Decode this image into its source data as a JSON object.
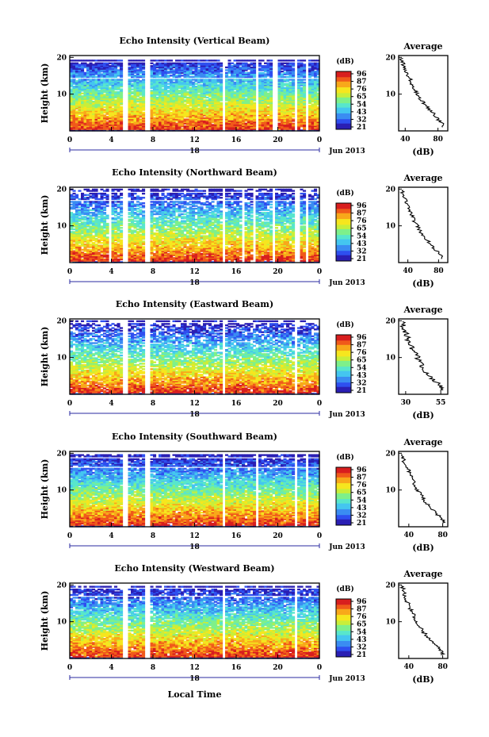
{
  "figure": {
    "xlabel": "Local Time",
    "x_ticks": [
      "0",
      "4",
      "8",
      "12",
      "16",
      "20",
      "0"
    ],
    "date_label": "18",
    "month_label": "Jun 2013",
    "ylabel": "Height (km)",
    "y_ticks": [
      "10",
      "20"
    ],
    "colorbar_unit": "(dB)",
    "profile_title": "Average",
    "profile_xlabel": "(dB)",
    "colormap": [
      "#2a1fb4",
      "#2e4ff0",
      "#3a8cf2",
      "#44c6f0",
      "#58e6cc",
      "#7ef08a",
      "#c8ee3a",
      "#f6e61e",
      "#f8a81a",
      "#f05a1a",
      "#d81e1e"
    ]
  },
  "chart_data": [
    {
      "type": "heatmap",
      "title": "Echo Intensity (Vertical Beam)",
      "colorbar_ticks": [
        "96",
        "87",
        "76",
        "65",
        "54",
        "43",
        "32",
        "21"
      ],
      "profile": {
        "x_ticks": [
          "40",
          "80"
        ],
        "xlim": [
          32,
          92
        ],
        "heights": [
          1.5,
          2.5,
          3.5,
          4.5,
          5.5,
          6.5,
          7.5,
          8.5,
          9.5,
          10.5,
          11.5,
          12.5,
          13.5,
          14.5,
          15.5,
          16.5,
          17.5,
          18.5,
          19.5
        ],
        "values": [
          88,
          86,
          81,
          77,
          73,
          69,
          65,
          61,
          58,
          55,
          53,
          50,
          48,
          46,
          44,
          42,
          40,
          38,
          36
        ]
      }
    },
    {
      "type": "heatmap",
      "title": "Echo Intensity (Northward Beam)",
      "colorbar_ticks": [
        "96",
        "87",
        "76",
        "65",
        "54",
        "43",
        "32",
        "21"
      ],
      "profile": {
        "x_ticks": [
          "40",
          "80"
        ],
        "xlim": [
          28,
          92
        ],
        "heights": [
          1.5,
          2.5,
          3.5,
          4.5,
          5.5,
          6.5,
          7.5,
          8.5,
          9.5,
          10.5,
          11.5,
          12.5,
          13.5,
          14.5,
          15.5,
          16.5,
          17.5,
          18.5,
          19.5
        ],
        "values": [
          86,
          84,
          78,
          74,
          70,
          66,
          62,
          58,
          55,
          52,
          49,
          47,
          45,
          43,
          41,
          39,
          37,
          35,
          33
        ]
      }
    },
    {
      "type": "heatmap",
      "title": "Echo Intensity (Eastward Beam)",
      "colorbar_ticks": [
        "96",
        "87",
        "76",
        "65",
        "54",
        "43",
        "32",
        "21"
      ],
      "profile": {
        "x_ticks": [
          "30",
          "55"
        ],
        "xlim": [
          25,
          60
        ],
        "heights": [
          1.5,
          2.5,
          3.5,
          4.5,
          5.5,
          6.5,
          7.5,
          8.5,
          9.5,
          10.5,
          11.5,
          12.5,
          13.5,
          14.5,
          15.5,
          16.5,
          17.5,
          18.5,
          19.5
        ],
        "values": [
          57,
          55,
          52,
          49,
          47,
          45,
          43,
          41,
          40,
          38,
          37,
          36,
          34,
          33,
          32,
          31,
          30,
          29,
          28
        ]
      }
    },
    {
      "type": "heatmap",
      "title": "Echo Intensity (Southward Beam)",
      "colorbar_ticks": [
        "96",
        "87",
        "76",
        "65",
        "54",
        "43",
        "32",
        "21"
      ],
      "profile": {
        "x_ticks": [
          "40",
          "80"
        ],
        "xlim": [
          28,
          86
        ],
        "heights": [
          1.5,
          2.5,
          3.5,
          4.5,
          5.5,
          6.5,
          7.5,
          8.5,
          9.5,
          10.5,
          11.5,
          12.5,
          13.5,
          14.5,
          15.5,
          16.5,
          17.5,
          18.5,
          19.5
        ],
        "values": [
          82,
          80,
          75,
          71,
          67,
          63,
          59,
          56,
          53,
          50,
          48,
          46,
          44,
          42,
          40,
          38,
          36,
          34,
          33
        ]
      }
    },
    {
      "type": "heatmap",
      "title": "Echo Intensity (Westward Beam)",
      "colorbar_ticks": [
        "96",
        "87",
        "76",
        "65",
        "54",
        "43",
        "32",
        "21"
      ],
      "profile": {
        "x_ticks": [
          "40",
          "80"
        ],
        "xlim": [
          28,
          86
        ],
        "heights": [
          1.5,
          2.5,
          3.5,
          4.5,
          5.5,
          6.5,
          7.5,
          8.5,
          9.5,
          10.5,
          11.5,
          12.5,
          13.5,
          14.5,
          15.5,
          16.5,
          17.5,
          18.5,
          19.5
        ],
        "values": [
          80,
          78,
          74,
          70,
          66,
          62,
          58,
          55,
          52,
          49,
          47,
          45,
          43,
          41,
          39,
          37,
          36,
          34,
          33
        ]
      }
    }
  ]
}
